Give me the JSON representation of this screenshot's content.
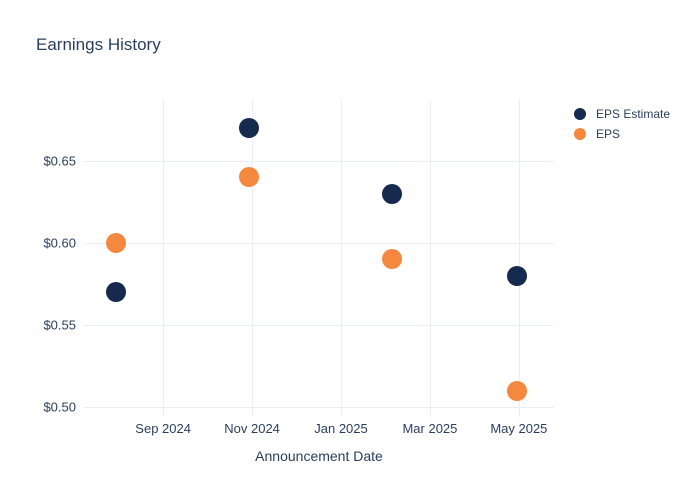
{
  "title": "Earnings History",
  "colors": {
    "text": "#2a3f5f",
    "grid": "#e9eef5",
    "background": "#ffffff",
    "eps_estimate": "#152a4e",
    "eps": "#f5883f"
  },
  "legend": {
    "items": [
      {
        "label": "EPS Estimate",
        "color": "#152a4e"
      },
      {
        "label": "EPS",
        "color": "#f5883f"
      }
    ]
  },
  "chart_data": {
    "type": "scatter",
    "title": "Earnings History",
    "xlabel": "Announcement Date",
    "ylabel": "",
    "grid": true,
    "legend_position": "right",
    "x_unit": "months since 2024-07-01",
    "xlim": [
      0.22,
      10.79
    ],
    "ylim": [
      0.4939,
      0.6878
    ],
    "x_ticks": [
      {
        "value": 2,
        "label": "Sep 2024"
      },
      {
        "value": 4,
        "label": "Nov 2024"
      },
      {
        "value": 6,
        "label": "Jan 2025"
      },
      {
        "value": 8,
        "label": "Mar 2025"
      },
      {
        "value": 10,
        "label": "May 2025"
      }
    ],
    "y_ticks": [
      {
        "value": 0.5,
        "label": "$0.50"
      },
      {
        "value": 0.55,
        "label": "$0.55"
      },
      {
        "value": 0.6,
        "label": "$0.60"
      },
      {
        "value": 0.65,
        "label": "$0.65"
      }
    ],
    "marker_size": 20,
    "series": [
      {
        "name": "EPS Estimate",
        "color": "#152a4e",
        "points": [
          {
            "x": 0.94,
            "date": "Aug 2024",
            "y": 0.57
          },
          {
            "x": 3.94,
            "date": "Nov 2024",
            "y": 0.67
          },
          {
            "x": 7.14,
            "date": "Feb 2025",
            "y": 0.63
          },
          {
            "x": 9.96,
            "date": "May 2025",
            "y": 0.58
          }
        ]
      },
      {
        "name": "EPS",
        "color": "#f5883f",
        "points": [
          {
            "x": 0.94,
            "date": "Aug 2024",
            "y": 0.6
          },
          {
            "x": 3.94,
            "date": "Nov 2024",
            "y": 0.64
          },
          {
            "x": 7.14,
            "date": "Feb 2025",
            "y": 0.59
          },
          {
            "x": 9.96,
            "date": "May 2025",
            "y": 0.51
          }
        ]
      }
    ]
  }
}
